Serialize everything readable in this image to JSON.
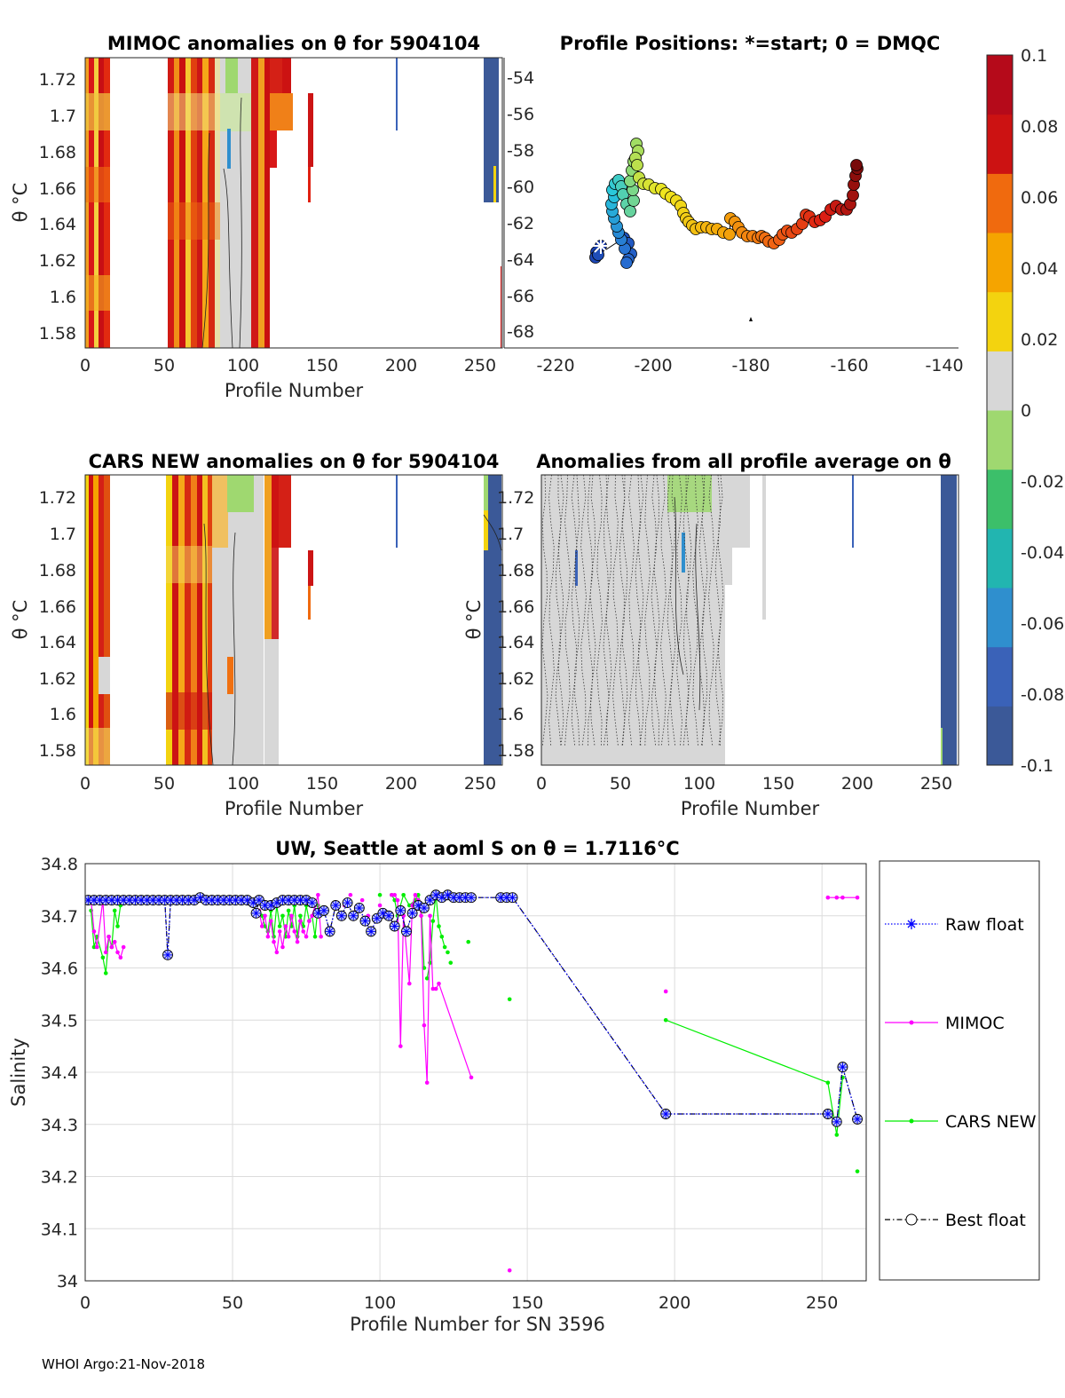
{
  "footer": "WHOI Argo:21-Nov-2018",
  "panels": {
    "mimoc": {
      "title": "MIMOC anomalies on θ  for 5904104",
      "xlabel": "Profile Number",
      "ylabel": "θ °C",
      "xticks": [
        "0",
        "50",
        "100",
        "150",
        "200",
        "250"
      ],
      "yticks": [
        "1.72",
        "1.7",
        "1.68",
        "1.66",
        "1.64",
        "1.62",
        "1.6",
        "1.58"
      ]
    },
    "positions": {
      "title": "Profile Positions: *=start; 0 = DMQC",
      "xticks": [
        "-220",
        "-200",
        "-180",
        "-160",
        "-140"
      ],
      "yticks": [
        "-54",
        "-56",
        "-58",
        "-60",
        "-62",
        "-64",
        "-66",
        "-68"
      ]
    },
    "cars": {
      "title": "CARS NEW anomalies on θ for 5904104",
      "xlabel": "Profile Number",
      "ylabel": "θ °C",
      "xticks": [
        "0",
        "50",
        "100",
        "150",
        "200",
        "250"
      ],
      "yticks": [
        "1.72",
        "1.7",
        "1.68",
        "1.66",
        "1.64",
        "1.62",
        "1.6",
        "1.58"
      ]
    },
    "allavg": {
      "title": "Anomalies from all profile average on θ",
      "xlabel": "Profile Number",
      "ylabel": "θ °C",
      "xticks": [
        "0",
        "50",
        "100",
        "150",
        "200",
        "250"
      ],
      "yticks": [
        "1.72",
        "1.7",
        "1.68",
        "1.66",
        "1.64",
        "1.62",
        "1.6",
        "1.58"
      ]
    }
  },
  "colorbar": {
    "ticks": [
      "0.1",
      "0.08",
      "0.06",
      "0.04",
      "0.02",
      "0",
      "-0.02",
      "-0.04",
      "-0.06",
      "-0.08",
      "-0.1"
    ],
    "colors": [
      "#3b5998",
      "#3a62b8",
      "#2f8fce",
      "#22b5b0",
      "#3cbf6a",
      "#9fd870",
      "#d7d7d7",
      "#f3d30f",
      "#f5a400",
      "#f06a0e",
      "#cc1212",
      "#b50a1a"
    ]
  },
  "chart_data": {
    "type": "line",
    "title": "UW, Seattle at aoml S on θ = 1.7116°C",
    "xlabel": "Profile Number for SN 3596",
    "ylabel": "Salinity",
    "xlim": [
      0,
      265
    ],
    "ylim": [
      34.0,
      34.8
    ],
    "xticks": [
      "0",
      "50",
      "100",
      "150",
      "200",
      "250"
    ],
    "yticks": [
      "34.8",
      "34.7",
      "34.6",
      "34.5",
      "34.4",
      "34.3",
      "34.2",
      "34.1",
      "34"
    ],
    "legend": [
      "Raw float",
      "MIMOC",
      "CARS NEW",
      "Best float"
    ],
    "series": [
      {
        "name": "Raw float",
        "color": "#0000ff",
        "x": [
          1,
          3,
          5,
          7,
          9,
          11,
          13,
          15,
          17,
          19,
          21,
          23,
          25,
          27,
          28,
          29,
          31,
          33,
          35,
          37,
          39,
          41,
          43,
          45,
          47,
          49,
          51,
          53,
          55,
          57,
          58,
          59,
          61,
          63,
          65,
          67,
          69,
          71,
          73,
          75,
          77,
          79,
          81,
          83,
          85,
          87,
          89,
          91,
          93,
          95,
          97,
          99,
          101,
          103,
          105,
          107,
          109,
          111,
          113,
          115,
          117,
          119,
          121,
          123,
          125,
          127,
          129,
          131,
          141,
          143,
          145,
          197,
          252,
          255,
          257,
          262
        ],
        "y": [
          34.73,
          34.73,
          34.73,
          34.73,
          34.73,
          34.73,
          34.73,
          34.73,
          34.73,
          34.73,
          34.73,
          34.73,
          34.73,
          34.73,
          34.625,
          34.73,
          34.73,
          34.73,
          34.73,
          34.73,
          34.735,
          34.73,
          34.73,
          34.73,
          34.73,
          34.73,
          34.73,
          34.73,
          34.73,
          34.725,
          34.705,
          34.73,
          34.72,
          34.72,
          34.725,
          34.73,
          34.73,
          34.73,
          34.73,
          34.73,
          34.725,
          34.705,
          34.71,
          34.67,
          34.72,
          34.7,
          34.725,
          34.7,
          34.715,
          34.69,
          34.67,
          34.695,
          34.705,
          34.7,
          34.68,
          34.71,
          34.67,
          34.705,
          34.72,
          34.715,
          34.73,
          34.74,
          34.735,
          34.74,
          34.735,
          34.735,
          34.735,
          34.735,
          34.735,
          34.735,
          34.735,
          34.32,
          34.32,
          34.305,
          34.41,
          34.31
        ]
      },
      {
        "name": "MIMOC",
        "color": "#ff00ff",
        "x": [
          2,
          3,
          4,
          6,
          7,
          8,
          9,
          10,
          11,
          12,
          13,
          59,
          60,
          61,
          62,
          63,
          64,
          65,
          66,
          67,
          68,
          69,
          70,
          71,
          72,
          73,
          74,
          75,
          76,
          77,
          78,
          79,
          80,
          88,
          90,
          92,
          94,
          96,
          100,
          104,
          105,
          106,
          107,
          108,
          110,
          111,
          112,
          113,
          114,
          115,
          116,
          117,
          118,
          119,
          120,
          131,
          144,
          197,
          252,
          255,
          257,
          262
        ],
        "y": [
          34.73,
          34.67,
          34.64,
          34.73,
          34.63,
          34.66,
          34.64,
          34.65,
          34.63,
          34.62,
          34.64,
          34.71,
          34.68,
          34.7,
          34.66,
          34.69,
          34.65,
          34.63,
          34.67,
          34.64,
          34.68,
          34.66,
          34.7,
          34.67,
          34.65,
          34.69,
          34.67,
          34.66,
          34.69,
          34.7,
          34.72,
          34.74,
          34.66,
          34.72,
          34.74,
          34.71,
          34.73,
          34.7,
          34.72,
          34.74,
          34.74,
          34.73,
          34.45,
          34.7,
          34.57,
          34.72,
          34.74,
          34.73,
          34.7,
          34.49,
          34.38,
          34.7,
          34.56,
          34.56,
          34.57,
          34.39,
          34.02,
          34.555,
          34.735,
          34.735,
          34.735,
          34.735
        ]
      },
      {
        "name": "CARS NEW",
        "color": "#00ee00",
        "x": [
          2,
          3,
          4,
          6,
          7,
          8,
          9,
          10,
          11,
          12,
          60,
          61,
          62,
          63,
          64,
          65,
          66,
          67,
          68,
          69,
          70,
          71,
          72,
          73,
          74,
          75,
          76,
          77,
          78,
          79,
          80,
          88,
          100,
          104,
          105,
          106,
          108,
          110,
          112,
          113,
          114,
          115,
          116,
          117,
          118,
          119,
          120,
          121,
          122,
          123,
          124,
          130,
          144,
          197,
          252,
          255,
          257,
          262
        ],
        "y": [
          34.71,
          34.64,
          34.66,
          34.62,
          34.59,
          34.66,
          34.64,
          34.71,
          34.68,
          34.72,
          34.7,
          34.68,
          34.67,
          34.71,
          34.66,
          34.72,
          34.68,
          34.7,
          34.66,
          34.71,
          34.68,
          34.72,
          34.66,
          34.7,
          34.68,
          34.72,
          34.69,
          34.7,
          34.66,
          34.72,
          34.71,
          34.72,
          34.74,
          34.74,
          34.73,
          34.7,
          34.74,
          34.72,
          34.73,
          34.74,
          34.72,
          34.6,
          34.58,
          34.61,
          34.69,
          34.74,
          34.68,
          34.66,
          34.64,
          34.63,
          34.61,
          34.65,
          34.54,
          34.5,
          34.38,
          34.28,
          34.39,
          34.21
        ]
      },
      {
        "name": "Best float",
        "color": "#000000",
        "x": [
          1,
          3,
          5,
          7,
          9,
          11,
          13,
          15,
          17,
          19,
          21,
          23,
          25,
          27,
          28,
          29,
          31,
          33,
          35,
          37,
          39,
          41,
          43,
          45,
          47,
          49,
          51,
          53,
          55,
          57,
          58,
          59,
          61,
          63,
          65,
          67,
          69,
          71,
          73,
          75,
          77,
          79,
          81,
          83,
          85,
          87,
          89,
          91,
          93,
          95,
          97,
          99,
          101,
          103,
          105,
          107,
          109,
          111,
          113,
          115,
          117,
          119,
          121,
          123,
          125,
          127,
          129,
          131,
          141,
          143,
          145,
          197,
          252,
          255,
          257,
          262
        ],
        "y": [
          34.73,
          34.73,
          34.73,
          34.73,
          34.73,
          34.73,
          34.73,
          34.73,
          34.73,
          34.73,
          34.73,
          34.73,
          34.73,
          34.73,
          34.625,
          34.73,
          34.73,
          34.73,
          34.73,
          34.73,
          34.735,
          34.73,
          34.73,
          34.73,
          34.73,
          34.73,
          34.73,
          34.73,
          34.73,
          34.725,
          34.705,
          34.73,
          34.72,
          34.72,
          34.725,
          34.73,
          34.73,
          34.73,
          34.73,
          34.73,
          34.725,
          34.705,
          34.71,
          34.67,
          34.72,
          34.7,
          34.725,
          34.7,
          34.715,
          34.69,
          34.67,
          34.695,
          34.705,
          34.7,
          34.68,
          34.71,
          34.67,
          34.705,
          34.72,
          34.715,
          34.73,
          34.74,
          34.735,
          34.74,
          34.735,
          34.735,
          34.735,
          34.735,
          34.735,
          34.735,
          34.735,
          34.32,
          34.32,
          34.305,
          34.41,
          34.31
        ]
      }
    ]
  }
}
